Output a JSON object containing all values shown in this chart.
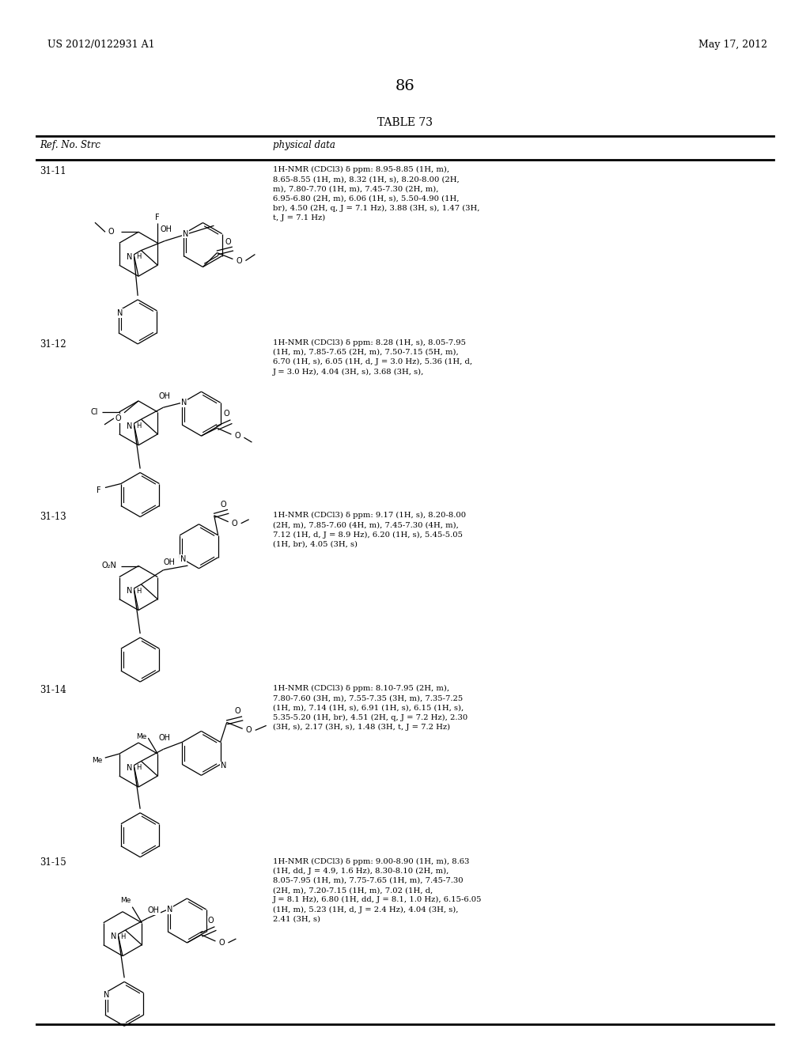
{
  "page_number": "86",
  "patent_number": "US 2012/0122931 A1",
  "patent_date": "May 17, 2012",
  "table_title": "TABLE 73",
  "col1_header": "Ref. No. Strc",
  "col2_header": "physical data",
  "background_color": "#ffffff",
  "rows": [
    {
      "ref": "31-11",
      "nmr": "1H-NMR (CDCl3) δ ppm: 8.95-8.85 (1H, m),\n8.65-8.55 (1H, m), 8.32 (1H, s), 8.20-8.00 (2H,\nm), 7.80-7.70 (1H, m), 7.45-7.30 (2H, m),\n6.95-6.80 (2H, m), 6.06 (1H, s), 5.50-4.90 (1H,\nbr), 4.50 (2H, q, J = 7.1 Hz), 3.88 (3H, s), 1.47 (3H,\nt, J = 7.1 Hz)"
    },
    {
      "ref": "31-12",
      "nmr": "1H-NMR (CDCl3) δ ppm: 8.28 (1H, s), 8.05-7.95\n(1H, m), 7.85-7.65 (2H, m), 7.50-7.15 (5H, m),\n6.70 (1H, s), 6.05 (1H, d, J = 3.0 Hz), 5.36 (1H, d,\nJ = 3.0 Hz), 4.04 (3H, s), 3.68 (3H, s),"
    },
    {
      "ref": "31-13",
      "nmr": "1H-NMR (CDCl3) δ ppm: 9.17 (1H, s), 8.20-8.00\n(2H, m), 7.85-7.60 (4H, m), 7.45-7.30 (4H, m),\n7.12 (1H, d, J = 8.9 Hz), 6.20 (1H, s), 5.45-5.05\n(1H, br), 4.05 (3H, s)"
    },
    {
      "ref": "31-14",
      "nmr": "1H-NMR (CDCl3) δ ppm: 8.10-7.95 (2H, m),\n7.80-7.60 (3H, m), 7.55-7.35 (3H, m), 7.35-7.25\n(1H, m), 7.14 (1H, s), 6.91 (1H, s), 6.15 (1H, s),\n5.35-5.20 (1H, br), 4.51 (2H, q, J = 7.2 Hz), 2.30\n(3H, s), 2.17 (3H, s), 1.48 (3H, t, J = 7.2 Hz)"
    },
    {
      "ref": "31-15",
      "nmr": "1H-NMR (CDCl3) δ ppm: 9.00-8.90 (1H, m), 8.63\n(1H, dd, J = 4.9, 1.6 Hz), 8.30-8.10 (2H, m),\n8.05-7.95 (1H, m), 7.75-7.65 (1H, m), 7.45-7.30\n(2H, m), 7.20-7.15 (1H, m), 7.02 (1H, d,\nJ = 8.1 Hz), 6.80 (1H, dd, J = 8.1, 1.0 Hz), 6.15-6.05\n(1H, m), 5.23 (1H, d, J = 2.4 Hz), 4.04 (3H, s),\n2.41 (3H, s)"
    }
  ]
}
